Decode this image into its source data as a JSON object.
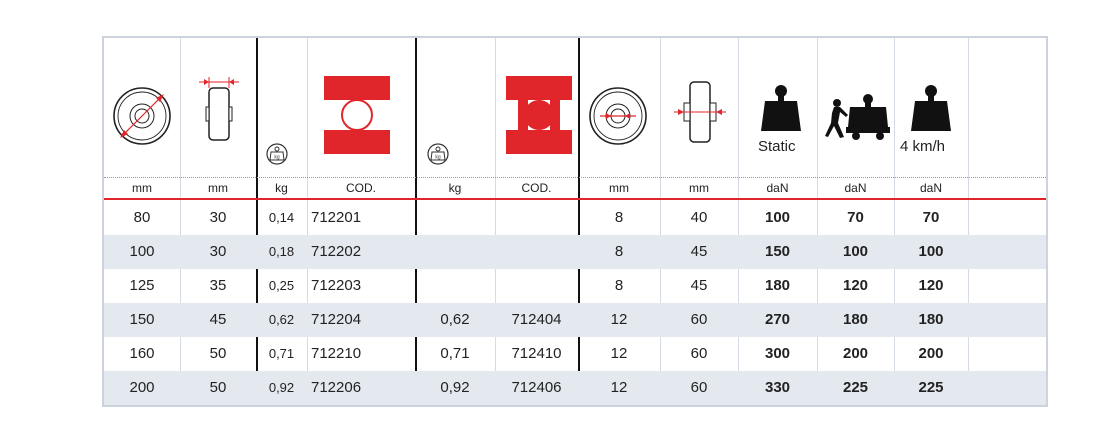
{
  "header": {
    "static_label": "Static",
    "speed_label": "4 km/h",
    "icons": [
      "wheel-diameter-icon",
      "wheel-width-icon",
      "weight-icon",
      "plain-bore-hub-icon",
      "weight-icon",
      "ball-bearing-hub-icon",
      "bore-diameter-icon",
      "hub-length-icon",
      "static-load-icon",
      "trolley-load-icon",
      "speed-load-icon"
    ]
  },
  "units": [
    "mm",
    "mm",
    "kg",
    "COD.",
    "kg",
    "COD.",
    "mm",
    "mm",
    "daN",
    "daN",
    "daN"
  ],
  "rows": [
    [
      "80",
      "30",
      "0,14",
      "712201",
      "",
      "",
      "8",
      "40",
      "100",
      "70",
      "70"
    ],
    [
      "100",
      "30",
      "0,18",
      "712202",
      "",
      "",
      "8",
      "45",
      "150",
      "100",
      "100"
    ],
    [
      "125",
      "35",
      "0,25",
      "712203",
      "",
      "",
      "8",
      "45",
      "180",
      "120",
      "120"
    ],
    [
      "150",
      "45",
      "0,62",
      "712204",
      "0,62",
      "712404",
      "12",
      "60",
      "270",
      "180",
      "180"
    ],
    [
      "160",
      "50",
      "0,71",
      "712210",
      "0,71",
      "712410",
      "12",
      "60",
      "300",
      "200",
      "200"
    ],
    [
      "200",
      "50",
      "0,92",
      "712206",
      "0,92",
      "712406",
      "12",
      "60",
      "330",
      "225",
      "225"
    ]
  ],
  "colors": {
    "accent_red": "#e0262b",
    "row_stripe": "#e4e9ef",
    "border": "#ccd3dc"
  }
}
